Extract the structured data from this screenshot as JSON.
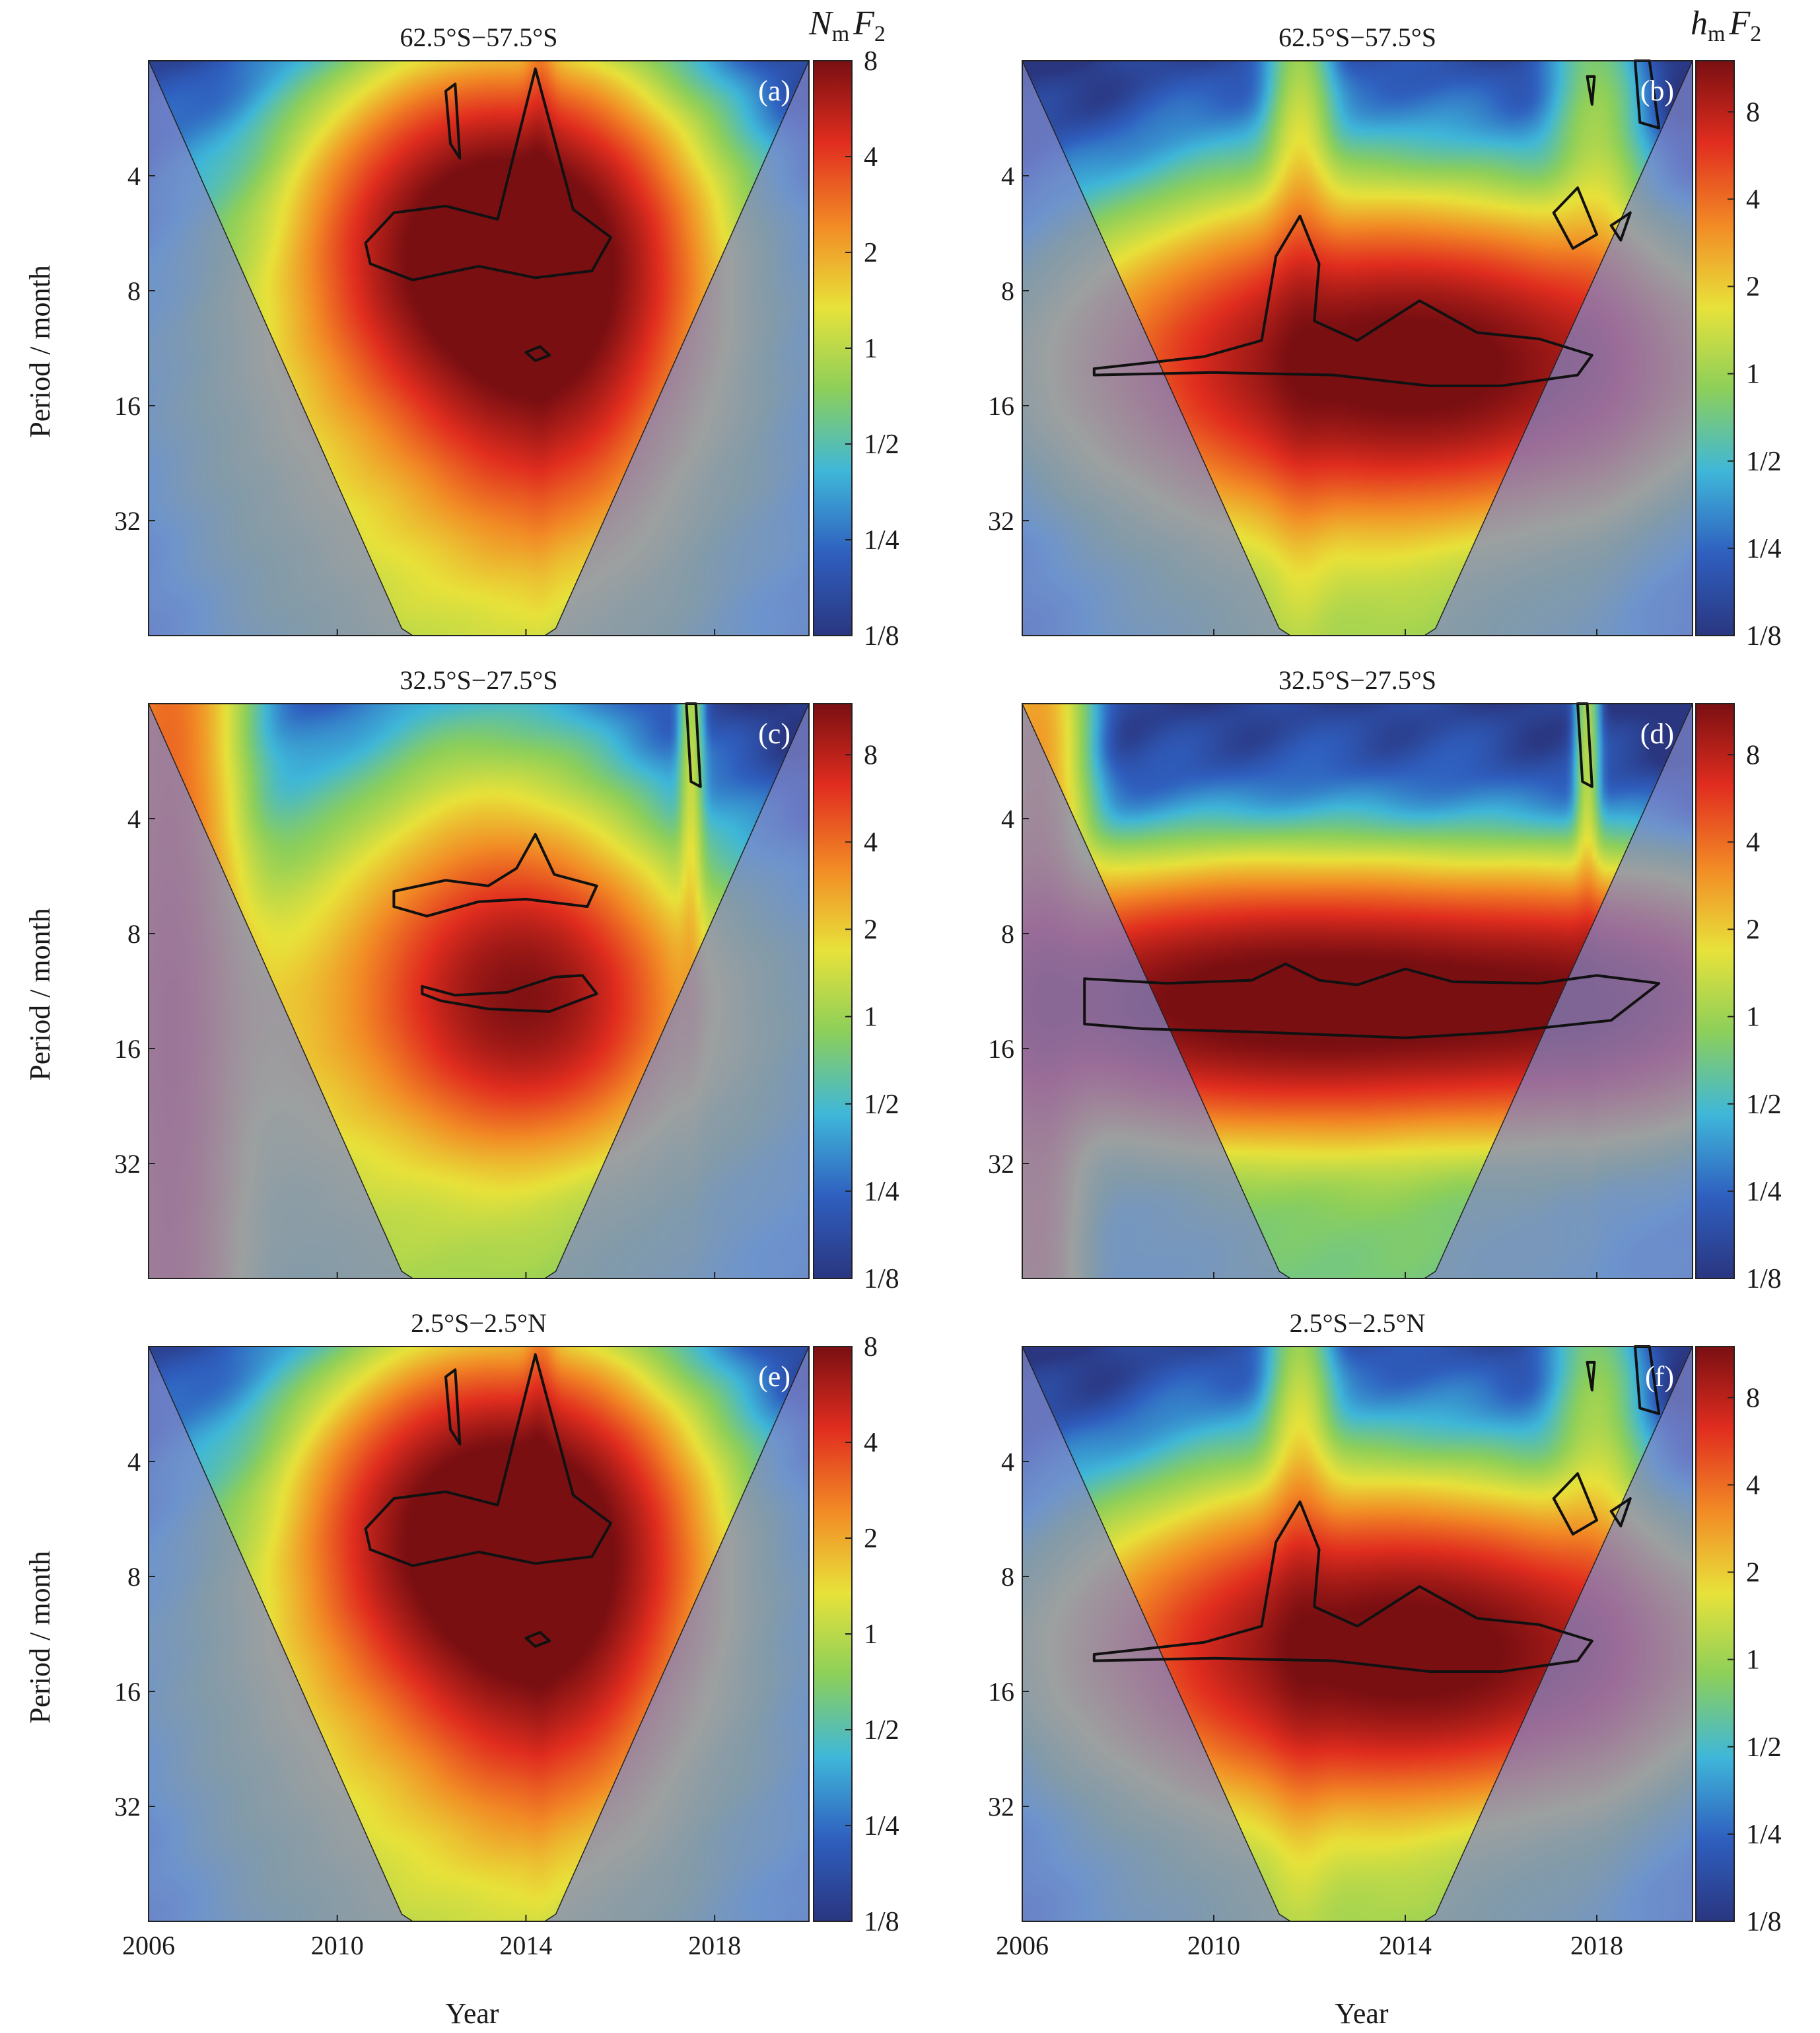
{
  "figure": {
    "ylabel": "Period / month",
    "xlabel": "Year",
    "colorbar_labels": {
      "nmf2": {
        "main": "N",
        "sub": "m",
        "tail": "F",
        "tail_sub": "2"
      },
      "hmf2": {
        "main": "h",
        "sub": "m",
        "tail": "F",
        "tail_sub": "2"
      }
    },
    "colors": {
      "dark_blue": "#2a3680",
      "blue": "#2f5fbf",
      "cyan": "#3fb7d9",
      "green": "#8ccf5a",
      "yellow": "#e8e23a",
      "orange": "#f28a25",
      "red": "#e12d1f",
      "dark_red": "#7a0f12",
      "coi_shade": "#7f86c8"
    }
  },
  "chart_data": [
    {
      "id": "a",
      "type": "heatmap",
      "subtype": "wavelet-power-spectrum",
      "title": "62.5°S−57.5°S",
      "panel_label": "(a)",
      "variable": "NmF2",
      "xlabel": "",
      "ylabel": "Period / month",
      "xlim": [
        2006,
        2020
      ],
      "xticks": [
        "2006",
        "2010",
        "2014",
        "2018"
      ],
      "ylim": [
        2,
        64
      ],
      "yscale": "log2",
      "yticks": [
        "4",
        "8",
        "16",
        "32"
      ],
      "colorbar_ticks": [
        "1/8",
        "1/4",
        "1/2",
        "1",
        "2",
        "4",
        "8"
      ],
      "colorbar_range": [
        0.125,
        8
      ],
      "features": [
        {
          "x": 2014.2,
          "period": 6,
          "power": 8,
          "sx": 1.8,
          "sy": 0.2
        },
        {
          "x": 2012.0,
          "period": 6,
          "power": 4,
          "sx": 1.6,
          "sy": 0.2
        },
        {
          "x": 2014.3,
          "period": 12,
          "power": 4,
          "sx": 1.5,
          "sy": 0.22
        },
        {
          "x": 2013.0,
          "period": 11,
          "power": 1.2,
          "sx": 4.0,
          "sy": 0.3
        },
        {
          "x": 2013.0,
          "period": 42,
          "power": 0.9,
          "sx": 4.0,
          "sy": 0.55
        },
        {
          "x": 2014.3,
          "period": 3,
          "power": 1.0,
          "sx": 0.2,
          "sy": 0.45
        }
      ],
      "contours": [
        {
          "x": [
            2010.6,
            2011.2,
            2012.3,
            2013.4,
            2014.2,
            2015.0,
            2015.8,
            2015.4,
            2014.2,
            2013.0,
            2011.6,
            2010.7
          ],
          "period": [
            6.0,
            5.0,
            4.8,
            5.2,
            2.1,
            4.9,
            5.8,
            7.1,
            7.4,
            6.9,
            7.5,
            6.8
          ]
        },
        {
          "x": [
            2014.0,
            2014.3,
            2014.5,
            2014.2
          ],
          "period": [
            11.6,
            11.2,
            11.8,
            12.2
          ]
        },
        {
          "x": [
            2012.3,
            2012.5,
            2012.6,
            2012.4
          ],
          "period": [
            2.4,
            2.3,
            3.6,
            3.3
          ]
        }
      ]
    },
    {
      "id": "b",
      "type": "heatmap",
      "subtype": "wavelet-power-spectrum",
      "title": "62.5°S−57.5°S",
      "panel_label": "(b)",
      "variable": "hmF2",
      "xlabel": "",
      "ylabel": "",
      "xlim": [
        2006,
        2020
      ],
      "xticks": [
        "2006",
        "2010",
        "2014",
        "2018"
      ],
      "ylim": [
        2,
        64
      ],
      "yscale": "log2",
      "yticks": [
        "4",
        "8",
        "16",
        "32"
      ],
      "colorbar_ticks": [
        "1/8",
        "1/4",
        "1/2",
        "1",
        "2",
        "4",
        "8"
      ],
      "colorbar_range": [
        0.125,
        12
      ],
      "features": [
        {
          "x": 2014.5,
          "period": 12.5,
          "power": 11,
          "sx": 3.2,
          "sy": 0.16
        },
        {
          "x": 2012.0,
          "period": 12,
          "power": 3,
          "sx": 3.5,
          "sy": 0.2
        },
        {
          "x": 2011.8,
          "period": 7,
          "power": 1.5,
          "sx": 0.4,
          "sy": 0.4
        },
        {
          "x": 2013.0,
          "period": 40,
          "power": 1.0,
          "sx": 4.0,
          "sy": 0.5
        },
        {
          "x": 2018.0,
          "period": 5,
          "power": 0.9,
          "sx": 0.6,
          "sy": 0.4
        }
      ],
      "contours": [
        {
          "x": [
            2007.5,
            2009.8,
            2011.0,
            2011.3,
            2011.8,
            2012.2,
            2012.1,
            2013.0,
            2014.3,
            2015.5,
            2016.8,
            2017.9,
            2017.6,
            2016.0,
            2014.5,
            2012.5,
            2010.0,
            2007.5
          ],
          "period": [
            12.8,
            11.9,
            10.8,
            6.5,
            5.1,
            6.8,
            9.6,
            10.8,
            8.5,
            10.3,
            10.7,
            11.8,
            13.3,
            14.2,
            14.2,
            13.3,
            13.1,
            13.3
          ]
        },
        {
          "x": [
            2017.1,
            2017.6,
            2018.0,
            2017.5
          ],
          "period": [
            5.0,
            4.3,
            5.7,
            6.2
          ]
        },
        {
          "x": [
            2018.3,
            2018.7,
            2018.5
          ],
          "period": [
            5.4,
            5.0,
            5.9
          ]
        },
        {
          "x": [
            2018.8,
            2019.1,
            2019.3,
            2018.9
          ],
          "period": [
            2.0,
            2.0,
            3.0,
            2.9
          ]
        },
        {
          "x": [
            2017.8,
            2017.95,
            2017.9
          ],
          "period": [
            2.2,
            2.2,
            2.6
          ]
        }
      ]
    },
    {
      "id": "c",
      "type": "heatmap",
      "subtype": "wavelet-power-spectrum",
      "title": "32.5°S−27.5°S",
      "panel_label": "(c)",
      "variable": "NmF2",
      "xlabel": "",
      "ylabel": "Period / month",
      "xlim": [
        2006,
        2020
      ],
      "xticks": [
        "2006",
        "2010",
        "2014",
        "2018"
      ],
      "ylim": [
        2,
        64
      ],
      "yscale": "log2",
      "yticks": [
        "4",
        "8",
        "16",
        "32"
      ],
      "colorbar_ticks": [
        "1/8",
        "1/4",
        "1/2",
        "1",
        "2",
        "4",
        "8"
      ],
      "colorbar_range": [
        0.125,
        12
      ],
      "features": [
        {
          "x": 2014.0,
          "period": 12,
          "power": 8,
          "sx": 1.6,
          "sy": 0.16
        },
        {
          "x": 2013.0,
          "period": 12,
          "power": 2,
          "sx": 4.0,
          "sy": 0.22
        },
        {
          "x": 2013.3,
          "period": 6,
          "power": 1.5,
          "sx": 1.8,
          "sy": 0.22
        },
        {
          "x": 2006.4,
          "period": 16,
          "power": 4,
          "sx": 0.9,
          "sy": 2.5
        },
        {
          "x": 2012.0,
          "period": 40,
          "power": 1.0,
          "sx": 5.0,
          "sy": 0.5
        },
        {
          "x": 2017.5,
          "period": 3,
          "power": 1.0,
          "sx": 0.15,
          "sy": 0.4
        }
      ],
      "contours": [
        {
          "x": [
            2011.2,
            2012.3,
            2013.2,
            2013.8,
            2014.2,
            2014.6,
            2015.5,
            2015.3,
            2014.0,
            2013.0,
            2011.9,
            2011.2
          ],
          "period": [
            6.2,
            5.8,
            6.0,
            5.4,
            4.4,
            5.6,
            6.0,
            6.8,
            6.5,
            6.6,
            7.2,
            6.8
          ]
        },
        {
          "x": [
            2011.8,
            2012.5,
            2013.6,
            2014.6,
            2015.2,
            2015.5,
            2014.5,
            2013.2,
            2012.2,
            2011.8
          ],
          "period": [
            11.0,
            11.6,
            11.4,
            10.4,
            10.3,
            11.5,
            12.8,
            12.6,
            12.0,
            11.5
          ]
        },
        {
          "x": [
            2017.4,
            2017.6,
            2017.7,
            2017.5
          ],
          "period": [
            2.0,
            2.0,
            3.3,
            3.2
          ]
        }
      ]
    },
    {
      "id": "d",
      "type": "heatmap",
      "subtype": "wavelet-power-spectrum",
      "title": "32.5°S−27.5°S",
      "panel_label": "(d)",
      "variable": "hmF2",
      "xlabel": "",
      "ylabel": "",
      "xlim": [
        2006,
        2020
      ],
      "xticks": [
        "2006",
        "2010",
        "2014",
        "2018"
      ],
      "ylim": [
        2,
        64
      ],
      "yscale": "log2",
      "yticks": [
        "4",
        "8",
        "16",
        "32"
      ],
      "colorbar_ticks": [
        "1/8",
        "1/4",
        "1/2",
        "1",
        "2",
        "4",
        "8"
      ],
      "colorbar_range": [
        0.125,
        12
      ],
      "features": [
        {
          "x": 2014.0,
          "period": 12,
          "power": 12,
          "sx": 4.0,
          "sy": 0.14
        },
        {
          "x": 2009.0,
          "period": 12,
          "power": 6,
          "sx": 3.0,
          "sy": 0.15
        },
        {
          "x": 2018.5,
          "period": 12,
          "power": 4,
          "sx": 2.0,
          "sy": 0.15
        },
        {
          "x": 2006.3,
          "period": 14,
          "power": 3,
          "sx": 0.6,
          "sy": 1.4
        },
        {
          "x": 2013.0,
          "period": 40,
          "power": 0.7,
          "sx": 5.0,
          "sy": 0.5
        },
        {
          "x": 2017.8,
          "period": 3,
          "power": 1.0,
          "sx": 0.15,
          "sy": 0.4
        }
      ],
      "contours": [
        {
          "x": [
            2007.3,
            2009.0,
            2010.8,
            2011.5,
            2012.2,
            2013.0,
            2014.0,
            2015.0,
            2016.8,
            2018.0,
            2019.3,
            2018.3,
            2016.0,
            2014.0,
            2011.0,
            2008.5,
            2007.3
          ],
          "period": [
            10.5,
            10.8,
            10.6,
            9.6,
            10.6,
            10.9,
            9.9,
            10.7,
            10.8,
            10.3,
            10.8,
            13.5,
            14.5,
            15.0,
            14.5,
            14.2,
            13.8
          ]
        },
        {
          "x": [
            2017.6,
            2017.8,
            2017.9,
            2017.7
          ],
          "period": [
            2.0,
            2.0,
            3.3,
            3.2
          ]
        }
      ]
    },
    {
      "id": "e",
      "type": "heatmap",
      "subtype": "wavelet-power-spectrum",
      "title": "2.5°S−2.5°N",
      "panel_label": "(e)",
      "variable": "NmF2",
      "xlabel": "Year",
      "ylabel": "Period / month",
      "xlim": [
        2006,
        2020
      ],
      "xticks": [
        "2006",
        "2010",
        "2014",
        "2018"
      ],
      "ylim": [
        2,
        64
      ],
      "yscale": "log2",
      "yticks": [
        "4",
        "8",
        "16",
        "32"
      ],
      "colorbar_ticks": [
        "1/8",
        "1/4",
        "1/2",
        "1",
        "2",
        "4",
        "8"
      ],
      "colorbar_range": [
        0.125,
        8
      ],
      "features": [
        {
          "x": 2014.2,
          "period": 6,
          "power": 8,
          "sx": 1.8,
          "sy": 0.2
        },
        {
          "x": 2012.0,
          "period": 6,
          "power": 4,
          "sx": 1.6,
          "sy": 0.2
        },
        {
          "x": 2014.3,
          "period": 12,
          "power": 4,
          "sx": 1.5,
          "sy": 0.22
        },
        {
          "x": 2013.0,
          "period": 11,
          "power": 1.2,
          "sx": 4.0,
          "sy": 0.3
        },
        {
          "x": 2013.0,
          "period": 42,
          "power": 0.9,
          "sx": 4.0,
          "sy": 0.55
        },
        {
          "x": 2014.3,
          "period": 3,
          "power": 1.0,
          "sx": 0.2,
          "sy": 0.45
        }
      ],
      "contours": [
        {
          "x": [
            2010.6,
            2011.2,
            2012.3,
            2013.4,
            2014.2,
            2015.0,
            2015.8,
            2015.4,
            2014.2,
            2013.0,
            2011.6,
            2010.7
          ],
          "period": [
            6.0,
            5.0,
            4.8,
            5.2,
            2.1,
            4.9,
            5.8,
            7.1,
            7.4,
            6.9,
            7.5,
            6.8
          ]
        },
        {
          "x": [
            2014.0,
            2014.3,
            2014.5,
            2014.2
          ],
          "period": [
            11.6,
            11.2,
            11.8,
            12.2
          ]
        },
        {
          "x": [
            2012.3,
            2012.5,
            2012.6,
            2012.4
          ],
          "period": [
            2.4,
            2.3,
            3.6,
            3.3
          ]
        }
      ]
    },
    {
      "id": "f",
      "type": "heatmap",
      "subtype": "wavelet-power-spectrum",
      "title": "2.5°S−2.5°N",
      "panel_label": "(f)",
      "variable": "hmF2",
      "xlabel": "Year",
      "ylabel": "",
      "xlim": [
        2006,
        2020
      ],
      "xticks": [
        "2006",
        "2010",
        "2014",
        "2018"
      ],
      "ylim": [
        2,
        64
      ],
      "yscale": "log2",
      "yticks": [
        "4",
        "8",
        "16",
        "32"
      ],
      "colorbar_ticks": [
        "1/8",
        "1/4",
        "1/2",
        "1",
        "2",
        "4",
        "8"
      ],
      "colorbar_range": [
        0.125,
        12
      ],
      "features": [
        {
          "x": 2014.5,
          "period": 12.5,
          "power": 11,
          "sx": 3.2,
          "sy": 0.16
        },
        {
          "x": 2012.0,
          "period": 12,
          "power": 3,
          "sx": 3.5,
          "sy": 0.2
        },
        {
          "x": 2011.8,
          "period": 7,
          "power": 1.5,
          "sx": 0.4,
          "sy": 0.4
        },
        {
          "x": 2013.0,
          "period": 40,
          "power": 1.0,
          "sx": 4.0,
          "sy": 0.5
        },
        {
          "x": 2018.0,
          "period": 5,
          "power": 0.9,
          "sx": 0.6,
          "sy": 0.4
        }
      ],
      "contours": [
        {
          "x": [
            2007.5,
            2009.8,
            2011.0,
            2011.3,
            2011.8,
            2012.2,
            2012.1,
            2013.0,
            2014.3,
            2015.5,
            2016.8,
            2017.9,
            2017.6,
            2016.0,
            2014.5,
            2012.5,
            2010.0,
            2007.5
          ],
          "period": [
            12.8,
            11.9,
            10.8,
            6.5,
            5.1,
            6.8,
            9.6,
            10.8,
            8.5,
            10.3,
            10.7,
            11.8,
            13.3,
            14.2,
            14.2,
            13.3,
            13.1,
            13.3
          ]
        },
        {
          "x": [
            2017.1,
            2017.6,
            2018.0,
            2017.5
          ],
          "period": [
            5.0,
            4.3,
            5.7,
            6.2
          ]
        },
        {
          "x": [
            2018.3,
            2018.7,
            2018.5
          ],
          "period": [
            5.4,
            5.0,
            5.9
          ]
        },
        {
          "x": [
            2018.8,
            2019.1,
            2019.3,
            2018.9
          ],
          "period": [
            2.0,
            2.0,
            3.0,
            2.9
          ]
        },
        {
          "x": [
            2017.8,
            2017.95,
            2017.9
          ],
          "period": [
            2.2,
            2.2,
            2.6
          ]
        }
      ]
    }
  ]
}
